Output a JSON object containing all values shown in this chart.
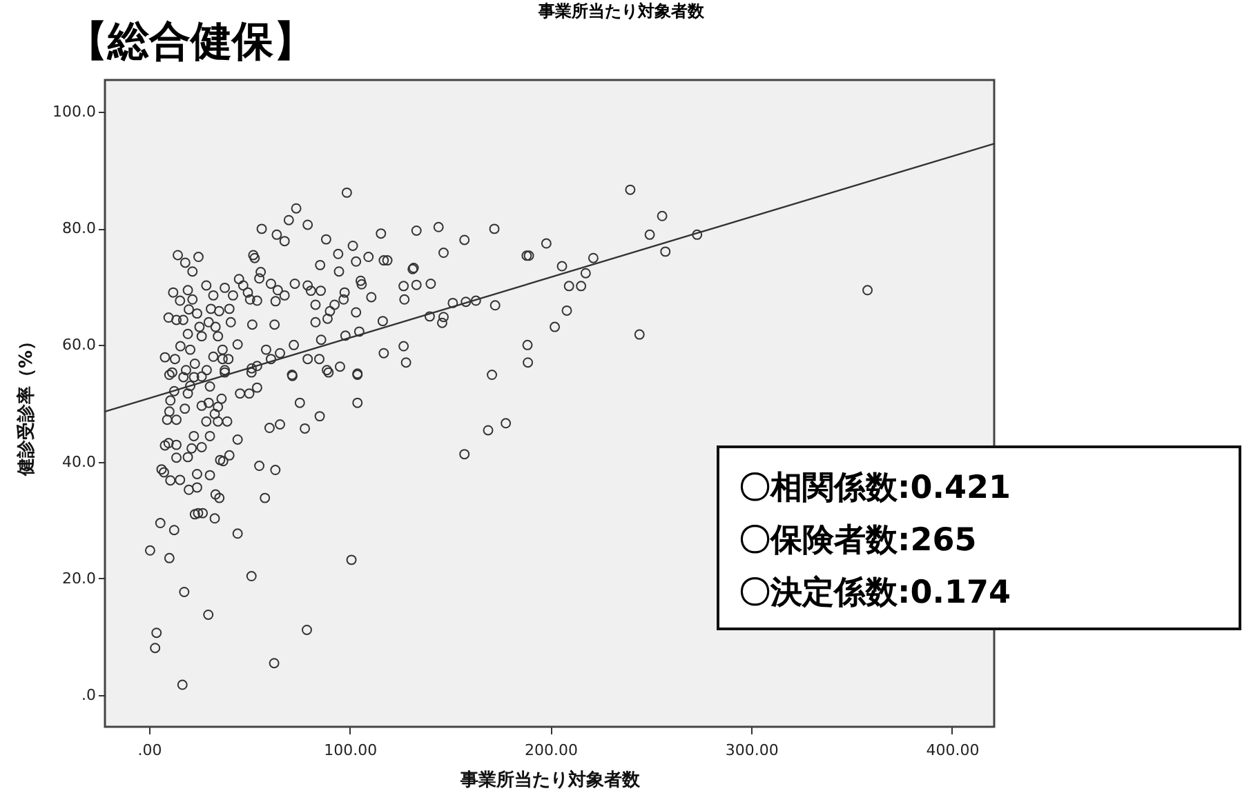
{
  "chart_data": {
    "type": "scatter",
    "title": "【総合健保】",
    "subtitle": "事業所当たり対象者数",
    "xlabel": "事業所当たり対象者数",
    "ylabel": "健診受診率（%）",
    "annotations": [
      "〇相関係数:0.421",
      "〇保険者数:265",
      "〇決定係数:0.174"
    ],
    "xlim": [
      -22,
      421
    ],
    "ylim": [
      -5.4,
      105.4
    ],
    "xticks": [
      {
        "value": 0,
        "label": ".00"
      },
      {
        "value": 100,
        "label": "100.00"
      },
      {
        "value": 200,
        "label": "200.00"
      },
      {
        "value": 300,
        "label": "300.00"
      },
      {
        "value": 400,
        "label": "400.00"
      }
    ],
    "yticks": [
      {
        "value": 0,
        "label": ".0"
      },
      {
        "value": 20,
        "label": "20.0"
      },
      {
        "value": 40,
        "label": "40.0"
      },
      {
        "value": 60,
        "label": "60.0"
      },
      {
        "value": 80,
        "label": "80.0"
      },
      {
        "value": 100,
        "label": "100.0"
      }
    ],
    "series": [
      {
        "color": "#333333",
        "marker": "circle",
        "x": [
          98.5,
          73.3,
          69.6,
          79.0,
          56.1,
          63.6,
          67.5,
          88.2,
          115.5,
          101.5,
          94.2,
          109.3,
          103.1,
          116.9,
          118.7,
          85.2,
          94.6,
          51.9,
          52.6,
          55.6,
          54.9,
          14.3,
          24.6,
          18.0,
          21.6,
          44.8,
          46.9,
          60.7,
          72.6,
          79.0,
          80.6,
          85.5,
          105.4,
          105.9,
          110.7,
          97.4,
          96.9,
          92.4,
          90.1,
          82.9,
          88.9,
          82.9,
          103.1,
          104.7,
          97.8,
          116.4,
          126.8,
          127.2,
          131.3,
          126.8,
          128.0,
          116.9,
          103.8,
          85.7,
          72.1,
          84.8,
          79.0,
          88.6,
          95.1,
          71.2,
          65.2,
          62.5,
          67.5,
          64.1,
          63.0,
          58.3,
          60.7,
          53.8,
          51.1,
          44.1,
          51.4,
          50.3,
          53.8,
          49.2,
          7.9,
          9.7,
          12.0,
          12.9,
          13.6,
          15.4,
          15.6,
          17.0,
          19.3,
          19.8,
          19.3,
          20.5,
          21.6,
          22.8,
          23.9,
          25.1,
          26.2,
          28.5,
          29.7,
          30.8,
          32.0,
          33.1,
          34.3,
          36.6,
          37.7,
          34.9,
          36.6,
          40.0,
          39.5,
          40.7,
          41.8,
          11.5,
          18.4,
          28.7,
          37.7,
          32.0,
          22.4,
          10.1,
          17.1,
          26.2,
          37.7,
          51.0,
          71.4,
          89.4,
          103.8,
          12.5,
          19.3,
          20.5,
          30.3,
          10.6,
          17.8,
          26.2,
          29.7,
          36.1,
          34.3,
          10.1,
          32.7,
          9.0,
          13.6,
          28.5,
          34.3,
          38.9,
          45.3,
          49.9,
          53.8,
          75.1,
          103.8,
          85.0,
          77.6,
          60.0,
          65.2,
          44.1,
          30.3,
          22.3,
          7.9,
          9.7,
          13.6,
          21.2,
          26.2,
          13.6,
          19.3,
          35.4,
          40.0,
          36.9,
          6.2,
          7.4,
          10.6,
          15.4,
          23.9,
          30.3,
          54.9,
          62.9,
          19.8,
          23.9,
          33.1,
          35.0,
          57.7,
          22.8,
          24.4,
          26.7,
          32.7,
          5.6,
          12.5,
          44.1,
          0.5,
          10.1,
          100.8,
          51.0,
          17.5,
          29.5,
          3.7,
          78.6,
          3.0,
          62.3,
          16.6,
          239.7,
          255.6,
          249.4,
          273.0,
          257.2,
          133.2,
          144.2,
          172.0,
          157.1,
          146.7,
          197.9,
          188.1,
          189.2,
          221.3,
          205.7,
          217.5,
          131.8,
          133.2,
          140.3,
          209.2,
          215.2,
          151.3,
          157.8,
          162.8,
          172.4,
          139.8,
          146.7,
          146.0,
          208.1,
          202.1,
          244.3,
          357.9,
          188.5,
          188.7,
          170.8,
          177.7,
          168.9,
          157.1
        ],
        "values": [
          86.1,
          83.4,
          81.4,
          80.6,
          79.9,
          78.9,
          77.8,
          78.1,
          79.1,
          77.0,
          75.6,
          75.1,
          74.3,
          74.5,
          74.5,
          73.7,
          72.6,
          75.4,
          74.9,
          72.5,
          71.4,
          75.4,
          75.1,
          74.1,
          72.6,
          71.3,
          70.2,
          70.5,
          70.5,
          70.2,
          69.3,
          69.3,
          71.0,
          70.4,
          68.2,
          69.0,
          67.8,
          66.9,
          65.8,
          66.9,
          64.5,
          63.9,
          65.6,
          62.3,
          61.6,
          64.1,
          70.1,
          67.8,
          73.0,
          59.8,
          57.0,
          58.6,
          55.1,
          60.9,
          60.0,
          57.6,
          57.6,
          55.7,
          56.3,
          54.9,
          58.6,
          63.5,
          68.5,
          69.4,
          67.5,
          59.2,
          57.6,
          56.4,
          56.0,
          60.1,
          63.5,
          67.8,
          67.6,
          69.0,
          57.9,
          64.7,
          69.0,
          57.6,
          64.3,
          67.6,
          59.8,
          64.3,
          69.4,
          66.1,
          61.9,
          59.2,
          67.8,
          56.8,
          65.4,
          63.1,
          61.5,
          70.2,
          63.9,
          66.2,
          68.5,
          63.1,
          61.5,
          59.2,
          69.8,
          65.8,
          57.6,
          66.2,
          57.6,
          63.9,
          68.5,
          55.3,
          55.7,
          55.7,
          55.7,
          58.0,
          54.5,
          54.9,
          54.5,
          54.6,
          55.3,
          55.3,
          54.7,
          55.3,
          54.9,
          52.1,
          51.7,
          53.0,
          52.9,
          50.5,
          49.1,
          49.6,
          50.1,
          50.8,
          49.4,
          48.6,
          48.2,
          47.2,
          47.2,
          46.9,
          46.9,
          46.9,
          51.7,
          51.7,
          52.7,
          50.1,
          50.1,
          47.8,
          45.7,
          45.8,
          46.4,
          43.8,
          44.4,
          44.4,
          42.8,
          43.2,
          42.9,
          42.3,
          42.5,
          40.7,
          40.8,
          40.3,
          41.1,
          40.1,
          38.7,
          38.2,
          36.8,
          36.9,
          37.9,
          37.7,
          39.3,
          38.6,
          35.2,
          35.6,
          34.4,
          33.8,
          33.8,
          31.0,
          31.2,
          31.2,
          30.3,
          29.5,
          28.3,
          27.7,
          24.8,
          23.5,
          23.2,
          20.4,
          17.7,
          13.8,
          10.7,
          11.2,
          8.1,
          5.5,
          1.8,
          86.6,
          82.1,
          78.9,
          78.9,
          76.0,
          79.6,
          80.2,
          79.9,
          78.0,
          75.8,
          77.4,
          75.3,
          75.3,
          74.9,
          73.5,
          72.3,
          73.2,
          70.3,
          70.5,
          70.1,
          70.1,
          67.2,
          67.4,
          67.6,
          66.8,
          64.9,
          64.8,
          63.8,
          65.9,
          63.1,
          61.8,
          69.4,
          60.0,
          57.0,
          54.9,
          46.6,
          45.4,
          41.3
        ]
      },
      {
        "type": "line",
        "color": "#333333",
        "x": [
          -22,
          421
        ],
        "values": [
          48.6,
          94.5
        ]
      }
    ]
  }
}
